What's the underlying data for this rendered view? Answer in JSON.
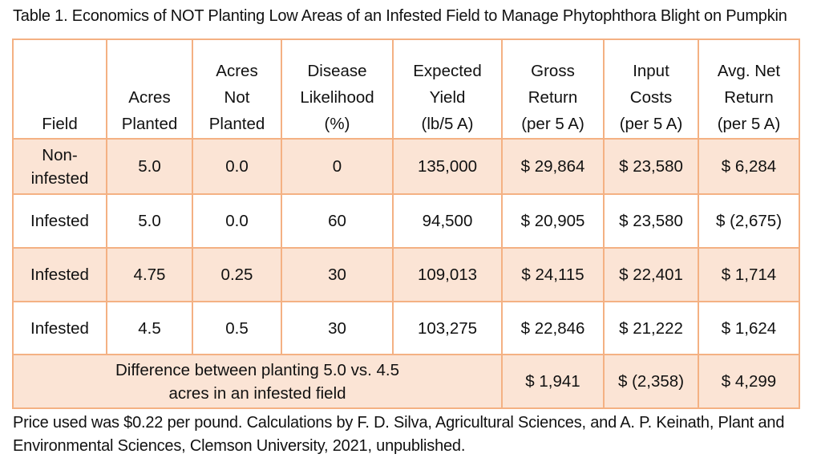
{
  "title": "Table 1. Economics of NOT Planting Low Areas of an Infested Field to Manage Phytophthora Blight on Pumpkin",
  "table": {
    "headers": [
      [
        "Field"
      ],
      [
        "Acres",
        "Planted"
      ],
      [
        "Acres",
        "Not",
        "Planted"
      ],
      [
        "Disease",
        "Likelihood",
        "(%)"
      ],
      [
        "Expected",
        "Yield",
        "(lb/5 A)"
      ],
      [
        "Gross",
        "Return",
        "(per 5 A)"
      ],
      [
        "Input",
        "Costs",
        "(per 5 A)"
      ],
      [
        "Avg. Net",
        "Return",
        "(per 5 A)"
      ]
    ],
    "rows": [
      [
        "Non-infested",
        "5.0",
        "0.0",
        "0",
        "135,000",
        "$ 29,864",
        "$ 23,580",
        "$ 6,284"
      ],
      [
        "Infested",
        "5.0",
        "0.0",
        "60",
        "94,500",
        "$ 20,905",
        "$ 23,580",
        "$ (2,675)"
      ],
      [
        "Infested",
        "4.75",
        "0.25",
        "30",
        "109,013",
        "$ 24,115",
        "$ 22,401",
        "$ 1,714"
      ],
      [
        "Infested",
        "4.5",
        "0.5",
        "30",
        "103,275",
        "$ 22,846",
        "$ 21,222",
        "$ 1,624"
      ]
    ],
    "difference": {
      "label": "Difference between planting 5.0 vs. 4.5 acres in an infested field",
      "values": [
        "$ 1,941",
        "$ (2,358)",
        "$ 4,299"
      ]
    }
  },
  "note": "Price used was $0.22 per pound. Calculations by F. D. Silva, Agricultural Sciences, and A. P. Keinath, Plant and Environmental Sciences, Clemson University, 2021, unpublished.",
  "colors": {
    "border": "#f4b183",
    "shade": "#fbe4d5"
  }
}
